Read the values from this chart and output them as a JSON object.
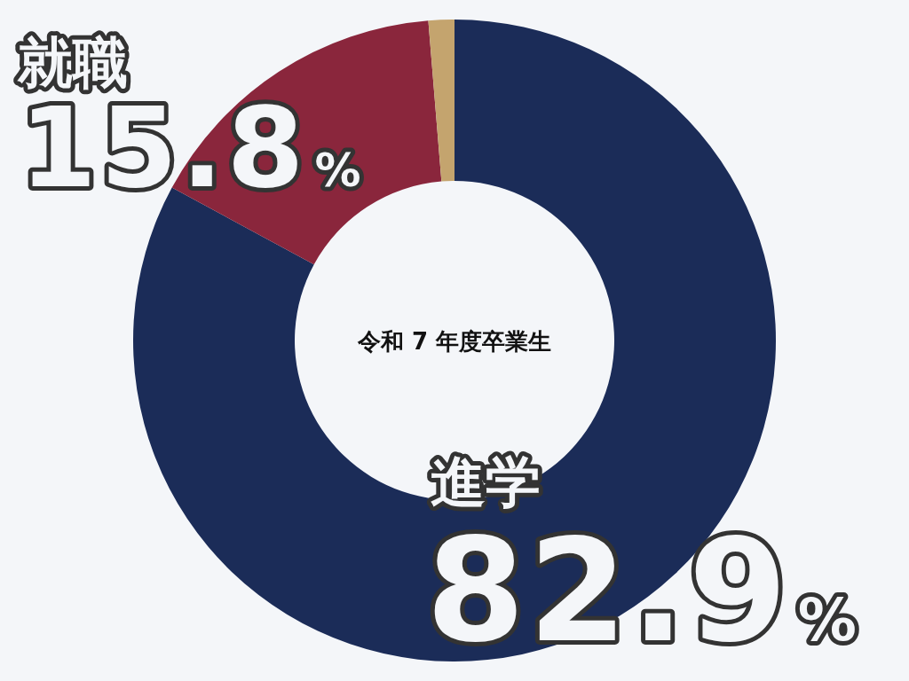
{
  "chart_data": {
    "type": "donut",
    "title": "令和 7 年度卒業生",
    "categories": [
      "進学",
      "就職",
      null
    ],
    "values": [
      82.9,
      15.8,
      1.3
    ],
    "colors": [
      "#1b2c58",
      "#8a263c",
      "#c4a46e"
    ],
    "value_labels": [
      "82.9%",
      "15.8%",
      null
    ]
  }
}
